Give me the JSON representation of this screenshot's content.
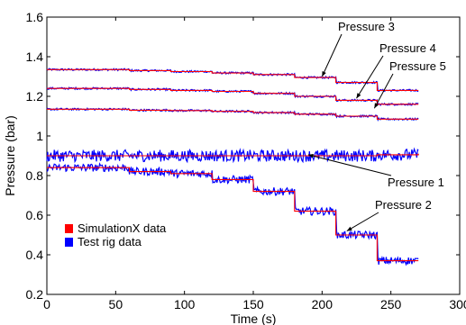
{
  "chart_data": {
    "type": "line",
    "xlabel": "Time (s)",
    "ylabel": "Pressure (bar)",
    "xlim": [
      0,
      300
    ],
    "ylim": [
      0.2,
      1.6
    ],
    "xticks": [
      0,
      50,
      100,
      150,
      200,
      250,
      300
    ],
    "yticks": [
      0.2,
      0.4,
      0.6,
      0.8,
      1,
      1.2,
      1.4,
      1.6
    ],
    "xtick_labels": [
      "0",
      "50",
      "100",
      "150",
      "200",
      "250",
      "300"
    ],
    "ytick_labels": [
      "0.2",
      "0.4",
      "0.6",
      "0.8",
      "1",
      "1.2",
      "1.4",
      "1.6"
    ],
    "grid": false,
    "legend_position": "lower-left",
    "legend": [
      {
        "label": "SimulationX data",
        "color": "#ff0000"
      },
      {
        "label": "Test rig data",
        "color": "#0000ff"
      }
    ],
    "annotations": [
      {
        "text": "Pressure 3",
        "target": [
          200,
          1.3
        ]
      },
      {
        "text": "Pressure 4",
        "target": [
          225,
          1.19
        ]
      },
      {
        "text": "Pressure 5",
        "target": [
          238,
          1.14
        ]
      },
      {
        "text": "Pressure 1",
        "target": [
          190,
          0.905
        ]
      },
      {
        "text": "Pressure 2",
        "target": [
          218,
          0.52
        ]
      }
    ],
    "series": [
      {
        "test_color": "#0000ff",
        "sim_color": "#ff0000",
        "noise": 0.005,
        "x": [
          0,
          30,
          60,
          90,
          120,
          150,
          180,
          210,
          240,
          270
        ],
        "y": [
          1.335,
          1.335,
          1.33,
          1.325,
          1.318,
          1.31,
          1.295,
          1.27,
          1.23,
          1.23
        ]
      },
      {
        "test_color": "#0000ff",
        "sim_color": "#ff0000",
        "noise": 0.005,
        "x": [
          0,
          30,
          60,
          90,
          120,
          150,
          180,
          210,
          240,
          270
        ],
        "y": [
          1.24,
          1.24,
          1.235,
          1.23,
          1.225,
          1.215,
          1.2,
          1.18,
          1.16,
          1.16
        ]
      },
      {
        "test_color": "#0000ff",
        "sim_color": "#ff0000",
        "noise": 0.005,
        "x": [
          0,
          30,
          60,
          90,
          120,
          150,
          180,
          210,
          240,
          270
        ],
        "y": [
          1.135,
          1.135,
          1.13,
          1.128,
          1.124,
          1.118,
          1.11,
          1.1,
          1.085,
          1.085
        ]
      },
      {
        "test_color": "#0000ff",
        "sim_color": "#ff0000",
        "noise": 0.03,
        "x": [
          0,
          30,
          60,
          90,
          120,
          150,
          180,
          210,
          240,
          270
        ],
        "y": [
          0.9,
          0.9,
          0.9,
          0.9,
          0.9,
          0.9,
          0.9,
          0.9,
          0.905,
          0.91
        ]
      },
      {
        "test_color": "#0000ff",
        "sim_color": "#ff0000",
        "noise": 0.02,
        "x": [
          0,
          30,
          60,
          90,
          120,
          150,
          180,
          210,
          240,
          270
        ],
        "y": [
          0.84,
          0.84,
          0.82,
          0.81,
          0.78,
          0.72,
          0.62,
          0.5,
          0.37,
          0.37
        ]
      }
    ]
  }
}
